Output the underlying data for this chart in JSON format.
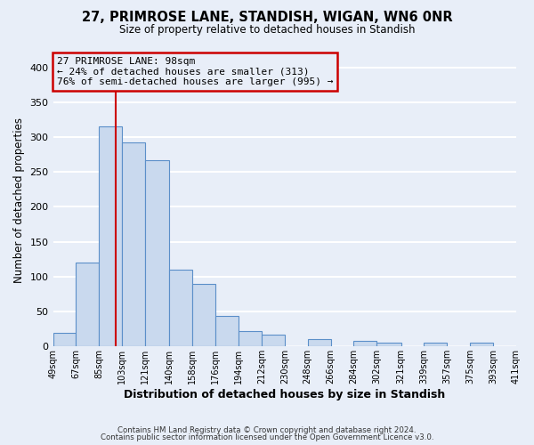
{
  "title": "27, PRIMROSE LANE, STANDISH, WIGAN, WN6 0NR",
  "subtitle": "Size of property relative to detached houses in Standish",
  "xlabel": "Distribution of detached houses by size in Standish",
  "ylabel": "Number of detached properties",
  "bar_color": "#c9d9ee",
  "bar_edge_color": "#5b8fc9",
  "background_color": "#e8eef8",
  "plot_bg_color": "#e8eef8",
  "grid_color": "#ffffff",
  "annotation_box_edge": "#cc0000",
  "annotation_line_color": "#cc0000",
  "annotation_text_line1": "27 PRIMROSE LANE: 98sqm",
  "annotation_text_line2": "← 24% of detached houses are smaller (313)",
  "annotation_text_line3": "76% of semi-detached houses are larger (995) →",
  "property_value": 98,
  "bin_edges": [
    49,
    67,
    85,
    103,
    121,
    140,
    158,
    176,
    194,
    212,
    230,
    248,
    266,
    284,
    302,
    321,
    339,
    357,
    375,
    393,
    411
  ],
  "bin_labels": [
    "49sqm",
    "67sqm",
    "85sqm",
    "103sqm",
    "121sqm",
    "140sqm",
    "158sqm",
    "176sqm",
    "194sqm",
    "212sqm",
    "230sqm",
    "248sqm",
    "266sqm",
    "284sqm",
    "302sqm",
    "321sqm",
    "339sqm",
    "357sqm",
    "375sqm",
    "393sqm",
    "411sqm"
  ],
  "counts": [
    20,
    120,
    315,
    293,
    267,
    110,
    90,
    44,
    22,
    17,
    0,
    10,
    0,
    8,
    6,
    0,
    5,
    0,
    6,
    0,
    3
  ],
  "ylim": [
    0,
    420
  ],
  "yticks": [
    0,
    50,
    100,
    150,
    200,
    250,
    300,
    350,
    400
  ],
  "footer_line1": "Contains HM Land Registry data © Crown copyright and database right 2024.",
  "footer_line2": "Contains public sector information licensed under the Open Government Licence v3.0."
}
